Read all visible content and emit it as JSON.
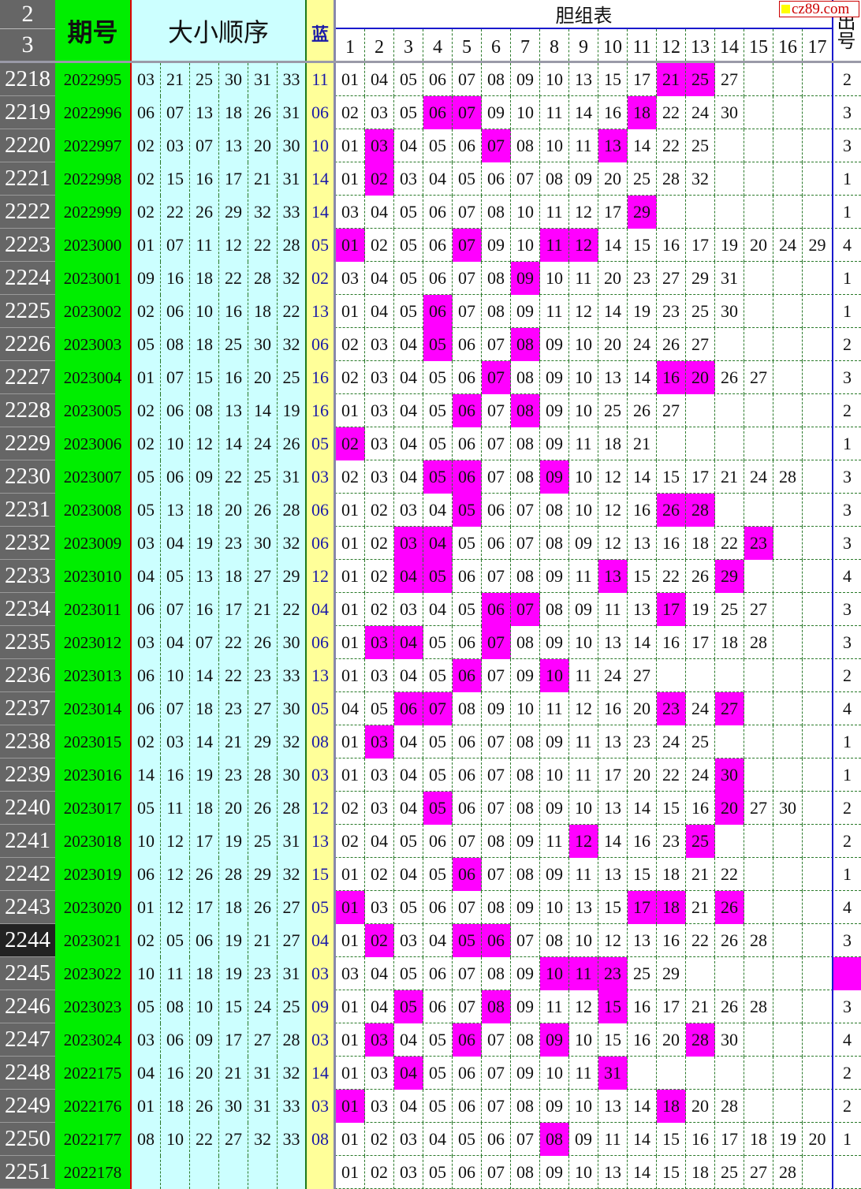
{
  "header": {
    "rn_top": "2",
    "rn_bottom": "3",
    "issue": "期号",
    "order": "大小顺序",
    "blue": "蓝",
    "dan": "胆组表",
    "out": "出号",
    "cols": [
      "1",
      "2",
      "3",
      "4",
      "5",
      "6",
      "7",
      "8",
      "9",
      "10",
      "11",
      "12",
      "13",
      "14",
      "15",
      "16",
      "17"
    ]
  },
  "watermark": "cz89.com",
  "colors": {
    "highlight": "#ff00ff",
    "issue_bg": "#00ee00",
    "order_bg": "#ccffff",
    "blue_bg": "#ffff99",
    "rownum_bg": "#666666"
  },
  "current_row": "2244",
  "rows": [
    {
      "n": "2218",
      "issue": "2022995",
      "nums": [
        "03",
        "21",
        "25",
        "30",
        "31",
        "33"
      ],
      "blue": "11",
      "dan": [
        "01",
        "04",
        "05",
        "06",
        "07",
        "08",
        "09",
        "10",
        "13",
        "15",
        "17",
        "21",
        "25",
        "27"
      ],
      "hl": [
        12,
        13
      ],
      "out": "2"
    },
    {
      "n": "2219",
      "issue": "2022996",
      "nums": [
        "06",
        "07",
        "13",
        "18",
        "26",
        "31"
      ],
      "blue": "06",
      "dan": [
        "02",
        "03",
        "05",
        "06",
        "07",
        "09",
        "10",
        "11",
        "14",
        "16",
        "18",
        "22",
        "24",
        "30"
      ],
      "hl": [
        4,
        5,
        11
      ],
      "out": "3"
    },
    {
      "n": "2220",
      "issue": "2022997",
      "nums": [
        "02",
        "03",
        "07",
        "13",
        "20",
        "30"
      ],
      "blue": "10",
      "dan": [
        "01",
        "03",
        "04",
        "05",
        "06",
        "07",
        "08",
        "10",
        "11",
        "13",
        "14",
        "22",
        "25"
      ],
      "hl": [
        2,
        6,
        10
      ],
      "out": "3"
    },
    {
      "n": "2221",
      "issue": "2022998",
      "nums": [
        "02",
        "15",
        "16",
        "17",
        "21",
        "31"
      ],
      "blue": "14",
      "dan": [
        "01",
        "02",
        "03",
        "04",
        "05",
        "06",
        "07",
        "08",
        "09",
        "20",
        "25",
        "28",
        "32"
      ],
      "hl": [
        2
      ],
      "out": "1"
    },
    {
      "n": "2222",
      "issue": "2022999",
      "nums": [
        "02",
        "22",
        "26",
        "29",
        "32",
        "33"
      ],
      "blue": "14",
      "dan": [
        "03",
        "04",
        "05",
        "06",
        "07",
        "08",
        "10",
        "11",
        "12",
        "17",
        "29"
      ],
      "hl": [
        11
      ],
      "out": "1"
    },
    {
      "n": "2223",
      "issue": "2023000",
      "nums": [
        "01",
        "07",
        "11",
        "12",
        "22",
        "28"
      ],
      "blue": "05",
      "dan": [
        "01",
        "02",
        "05",
        "06",
        "07",
        "09",
        "10",
        "11",
        "12",
        "14",
        "15",
        "16",
        "17",
        "19",
        "20",
        "24",
        "29"
      ],
      "hl": [
        1,
        5,
        8,
        9
      ],
      "out": "4"
    },
    {
      "n": "2224",
      "issue": "2023001",
      "nums": [
        "09",
        "16",
        "18",
        "22",
        "28",
        "32"
      ],
      "blue": "02",
      "dan": [
        "03",
        "04",
        "05",
        "06",
        "07",
        "08",
        "09",
        "10",
        "11",
        "20",
        "23",
        "27",
        "29",
        "31"
      ],
      "hl": [
        7
      ],
      "out": "1"
    },
    {
      "n": "2225",
      "issue": "2023002",
      "nums": [
        "02",
        "06",
        "10",
        "16",
        "18",
        "22"
      ],
      "blue": "13",
      "dan": [
        "01",
        "04",
        "05",
        "06",
        "07",
        "08",
        "09",
        "11",
        "12",
        "14",
        "19",
        "23",
        "25",
        "30"
      ],
      "hl": [
        4
      ],
      "out": "1"
    },
    {
      "n": "2226",
      "issue": "2023003",
      "nums": [
        "05",
        "08",
        "18",
        "25",
        "30",
        "32"
      ],
      "blue": "06",
      "dan": [
        "02",
        "03",
        "04",
        "05",
        "06",
        "07",
        "08",
        "09",
        "10",
        "20",
        "24",
        "26",
        "27"
      ],
      "hl": [
        4,
        7
      ],
      "out": "2"
    },
    {
      "n": "2227",
      "issue": "2023004",
      "nums": [
        "01",
        "07",
        "15",
        "16",
        "20",
        "25"
      ],
      "blue": "16",
      "dan": [
        "02",
        "03",
        "04",
        "05",
        "06",
        "07",
        "08",
        "09",
        "10",
        "13",
        "14",
        "16",
        "20",
        "26",
        "27"
      ],
      "hl": [
        6,
        12,
        13
      ],
      "out": "3"
    },
    {
      "n": "2228",
      "issue": "2023005",
      "nums": [
        "02",
        "06",
        "08",
        "13",
        "14",
        "19"
      ],
      "blue": "16",
      "dan": [
        "01",
        "03",
        "04",
        "05",
        "06",
        "07",
        "08",
        "09",
        "10",
        "25",
        "26",
        "27"
      ],
      "hl": [
        5,
        7
      ],
      "out": "2"
    },
    {
      "n": "2229",
      "issue": "2023006",
      "nums": [
        "02",
        "10",
        "12",
        "14",
        "24",
        "26"
      ],
      "blue": "05",
      "dan": [
        "02",
        "03",
        "04",
        "05",
        "06",
        "07",
        "08",
        "09",
        "11",
        "18",
        "21"
      ],
      "hl": [
        1
      ],
      "out": "1"
    },
    {
      "n": "2230",
      "issue": "2023007",
      "nums": [
        "05",
        "06",
        "09",
        "22",
        "25",
        "31"
      ],
      "blue": "03",
      "dan": [
        "02",
        "03",
        "04",
        "05",
        "06",
        "07",
        "08",
        "09",
        "10",
        "12",
        "14",
        "15",
        "17",
        "21",
        "24",
        "28"
      ],
      "hl": [
        4,
        5,
        8
      ],
      "out": "3"
    },
    {
      "n": "2231",
      "issue": "2023008",
      "nums": [
        "05",
        "13",
        "18",
        "20",
        "26",
        "28"
      ],
      "blue": "06",
      "dan": [
        "01",
        "02",
        "03",
        "04",
        "05",
        "06",
        "07",
        "08",
        "10",
        "12",
        "16",
        "26",
        "28"
      ],
      "hl": [
        5,
        12,
        13
      ],
      "out": "3"
    },
    {
      "n": "2232",
      "issue": "2023009",
      "nums": [
        "03",
        "04",
        "19",
        "23",
        "30",
        "32"
      ],
      "blue": "06",
      "dan": [
        "01",
        "02",
        "03",
        "04",
        "05",
        "06",
        "07",
        "08",
        "09",
        "12",
        "13",
        "16",
        "18",
        "22",
        "23"
      ],
      "hl": [
        3,
        4,
        15
      ],
      "out": "3"
    },
    {
      "n": "2233",
      "issue": "2023010",
      "nums": [
        "04",
        "05",
        "13",
        "18",
        "27",
        "29"
      ],
      "blue": "12",
      "dan": [
        "01",
        "02",
        "04",
        "05",
        "06",
        "07",
        "08",
        "09",
        "11",
        "13",
        "15",
        "22",
        "26",
        "29"
      ],
      "hl": [
        3,
        4,
        10,
        14
      ],
      "out": "4"
    },
    {
      "n": "2234",
      "issue": "2023011",
      "nums": [
        "06",
        "07",
        "16",
        "17",
        "21",
        "22"
      ],
      "blue": "04",
      "dan": [
        "01",
        "02",
        "03",
        "04",
        "05",
        "06",
        "07",
        "08",
        "09",
        "11",
        "13",
        "17",
        "19",
        "25",
        "27"
      ],
      "hl": [
        6,
        7,
        12
      ],
      "out": "3"
    },
    {
      "n": "2235",
      "issue": "2023012",
      "nums": [
        "03",
        "04",
        "07",
        "22",
        "26",
        "30"
      ],
      "blue": "06",
      "dan": [
        "01",
        "03",
        "04",
        "05",
        "06",
        "07",
        "08",
        "09",
        "10",
        "13",
        "14",
        "16",
        "17",
        "18",
        "28"
      ],
      "hl": [
        2,
        3,
        6
      ],
      "out": "3"
    },
    {
      "n": "2236",
      "issue": "2023013",
      "nums": [
        "06",
        "10",
        "14",
        "22",
        "23",
        "33"
      ],
      "blue": "13",
      "dan": [
        "01",
        "03",
        "04",
        "05",
        "06",
        "07",
        "09",
        "10",
        "11",
        "24",
        "27"
      ],
      "hl": [
        5,
        8
      ],
      "out": "2"
    },
    {
      "n": "2237",
      "issue": "2023014",
      "nums": [
        "06",
        "07",
        "18",
        "23",
        "27",
        "30"
      ],
      "blue": "05",
      "dan": [
        "04",
        "05",
        "06",
        "07",
        "08",
        "09",
        "10",
        "11",
        "12",
        "16",
        "20",
        "23",
        "24",
        "27"
      ],
      "hl": [
        3,
        4,
        12,
        14
      ],
      "out": "4"
    },
    {
      "n": "2238",
      "issue": "2023015",
      "nums": [
        "02",
        "03",
        "14",
        "21",
        "29",
        "32"
      ],
      "blue": "08",
      "dan": [
        "01",
        "03",
        "04",
        "05",
        "06",
        "07",
        "08",
        "09",
        "11",
        "13",
        "23",
        "24",
        "25"
      ],
      "hl": [
        2
      ],
      "out": "1"
    },
    {
      "n": "2239",
      "issue": "2023016",
      "nums": [
        "14",
        "16",
        "19",
        "23",
        "28",
        "30"
      ],
      "blue": "03",
      "dan": [
        "01",
        "03",
        "04",
        "05",
        "06",
        "07",
        "08",
        "10",
        "11",
        "17",
        "20",
        "22",
        "24",
        "30"
      ],
      "hl": [
        14
      ],
      "out": "1"
    },
    {
      "n": "2240",
      "issue": "2023017",
      "nums": [
        "05",
        "11",
        "18",
        "20",
        "26",
        "28"
      ],
      "blue": "12",
      "dan": [
        "02",
        "03",
        "04",
        "05",
        "06",
        "07",
        "08",
        "09",
        "10",
        "13",
        "14",
        "15",
        "16",
        "20",
        "27",
        "30"
      ],
      "hl": [
        4,
        14
      ],
      "out": "2"
    },
    {
      "n": "2241",
      "issue": "2023018",
      "nums": [
        "10",
        "12",
        "17",
        "19",
        "25",
        "31"
      ],
      "blue": "13",
      "dan": [
        "02",
        "04",
        "05",
        "06",
        "07",
        "08",
        "09",
        "11",
        "12",
        "14",
        "16",
        "23",
        "25"
      ],
      "hl": [
        9,
        13
      ],
      "out": "2"
    },
    {
      "n": "2242",
      "issue": "2023019",
      "nums": [
        "06",
        "12",
        "26",
        "28",
        "29",
        "32"
      ],
      "blue": "15",
      "dan": [
        "01",
        "02",
        "04",
        "05",
        "06",
        "07",
        "08",
        "09",
        "11",
        "13",
        "15",
        "18",
        "21",
        "22"
      ],
      "hl": [
        5
      ],
      "out": "1"
    },
    {
      "n": "2243",
      "issue": "2023020",
      "nums": [
        "01",
        "12",
        "17",
        "18",
        "26",
        "27"
      ],
      "blue": "05",
      "dan": [
        "01",
        "03",
        "05",
        "06",
        "07",
        "08",
        "09",
        "10",
        "13",
        "15",
        "17",
        "18",
        "21",
        "26"
      ],
      "hl": [
        1,
        11,
        12,
        14
      ],
      "out": "4"
    },
    {
      "n": "2244",
      "issue": "2023021",
      "nums": [
        "02",
        "05",
        "06",
        "19",
        "21",
        "27"
      ],
      "blue": "04",
      "dan": [
        "01",
        "02",
        "03",
        "04",
        "05",
        "06",
        "07",
        "08",
        "10",
        "12",
        "13",
        "16",
        "22",
        "26",
        "28"
      ],
      "hl": [
        2,
        5,
        6
      ],
      "out": "3"
    },
    {
      "n": "2245",
      "issue": "2023022",
      "nums": [
        "10",
        "11",
        "18",
        "19",
        "23",
        "31"
      ],
      "blue": "03",
      "dan": [
        "03",
        "04",
        "05",
        "06",
        "07",
        "08",
        "09",
        "10",
        "11",
        "23",
        "25",
        "29"
      ],
      "hl": [
        8,
        9,
        10
      ],
      "out": "",
      "out_hl": true
    },
    {
      "n": "2246",
      "issue": "2023023",
      "nums": [
        "05",
        "08",
        "10",
        "15",
        "24",
        "25"
      ],
      "blue": "09",
      "dan": [
        "01",
        "04",
        "05",
        "06",
        "07",
        "08",
        "09",
        "11",
        "12",
        "15",
        "16",
        "17",
        "21",
        "26",
        "28"
      ],
      "hl": [
        3,
        6,
        10
      ],
      "out": "3"
    },
    {
      "n": "2247",
      "issue": "2023024",
      "nums": [
        "03",
        "06",
        "09",
        "17",
        "27",
        "28"
      ],
      "blue": "03",
      "dan": [
        "01",
        "03",
        "04",
        "05",
        "06",
        "07",
        "08",
        "09",
        "10",
        "15",
        "16",
        "20",
        "28",
        "30"
      ],
      "hl": [
        2,
        5,
        8,
        13
      ],
      "out": "4"
    },
    {
      "n": "2248",
      "issue": "2022175",
      "nums": [
        "04",
        "16",
        "20",
        "21",
        "31",
        "32"
      ],
      "blue": "14",
      "dan": [
        "01",
        "03",
        "04",
        "05",
        "06",
        "07",
        "09",
        "10",
        "11",
        "31"
      ],
      "hl": [
        3,
        10
      ],
      "out": "2"
    },
    {
      "n": "2249",
      "issue": "2022176",
      "nums": [
        "01",
        "18",
        "26",
        "30",
        "31",
        "33"
      ],
      "blue": "03",
      "dan": [
        "01",
        "03",
        "04",
        "05",
        "06",
        "07",
        "08",
        "09",
        "10",
        "13",
        "14",
        "18",
        "20",
        "28"
      ],
      "hl": [
        1,
        12
      ],
      "out": "2"
    },
    {
      "n": "2250",
      "issue": "2022177",
      "nums": [
        "08",
        "10",
        "22",
        "27",
        "32",
        "33"
      ],
      "blue": "08",
      "dan": [
        "01",
        "02",
        "03",
        "04",
        "05",
        "06",
        "07",
        "08",
        "09",
        "11",
        "14",
        "15",
        "16",
        "17",
        "18",
        "19",
        "20"
      ],
      "hl": [
        8
      ],
      "out": "1"
    },
    {
      "n": "2251",
      "issue": "2022178",
      "nums": [
        "",
        "",
        "",
        "",
        "",
        ""
      ],
      "blue": "",
      "dan": [
        "01",
        "02",
        "03",
        "05",
        "06",
        "07",
        "08",
        "09",
        "10",
        "13",
        "14",
        "15",
        "18",
        "25",
        "27",
        "28"
      ],
      "hl": [],
      "out": ""
    }
  ]
}
